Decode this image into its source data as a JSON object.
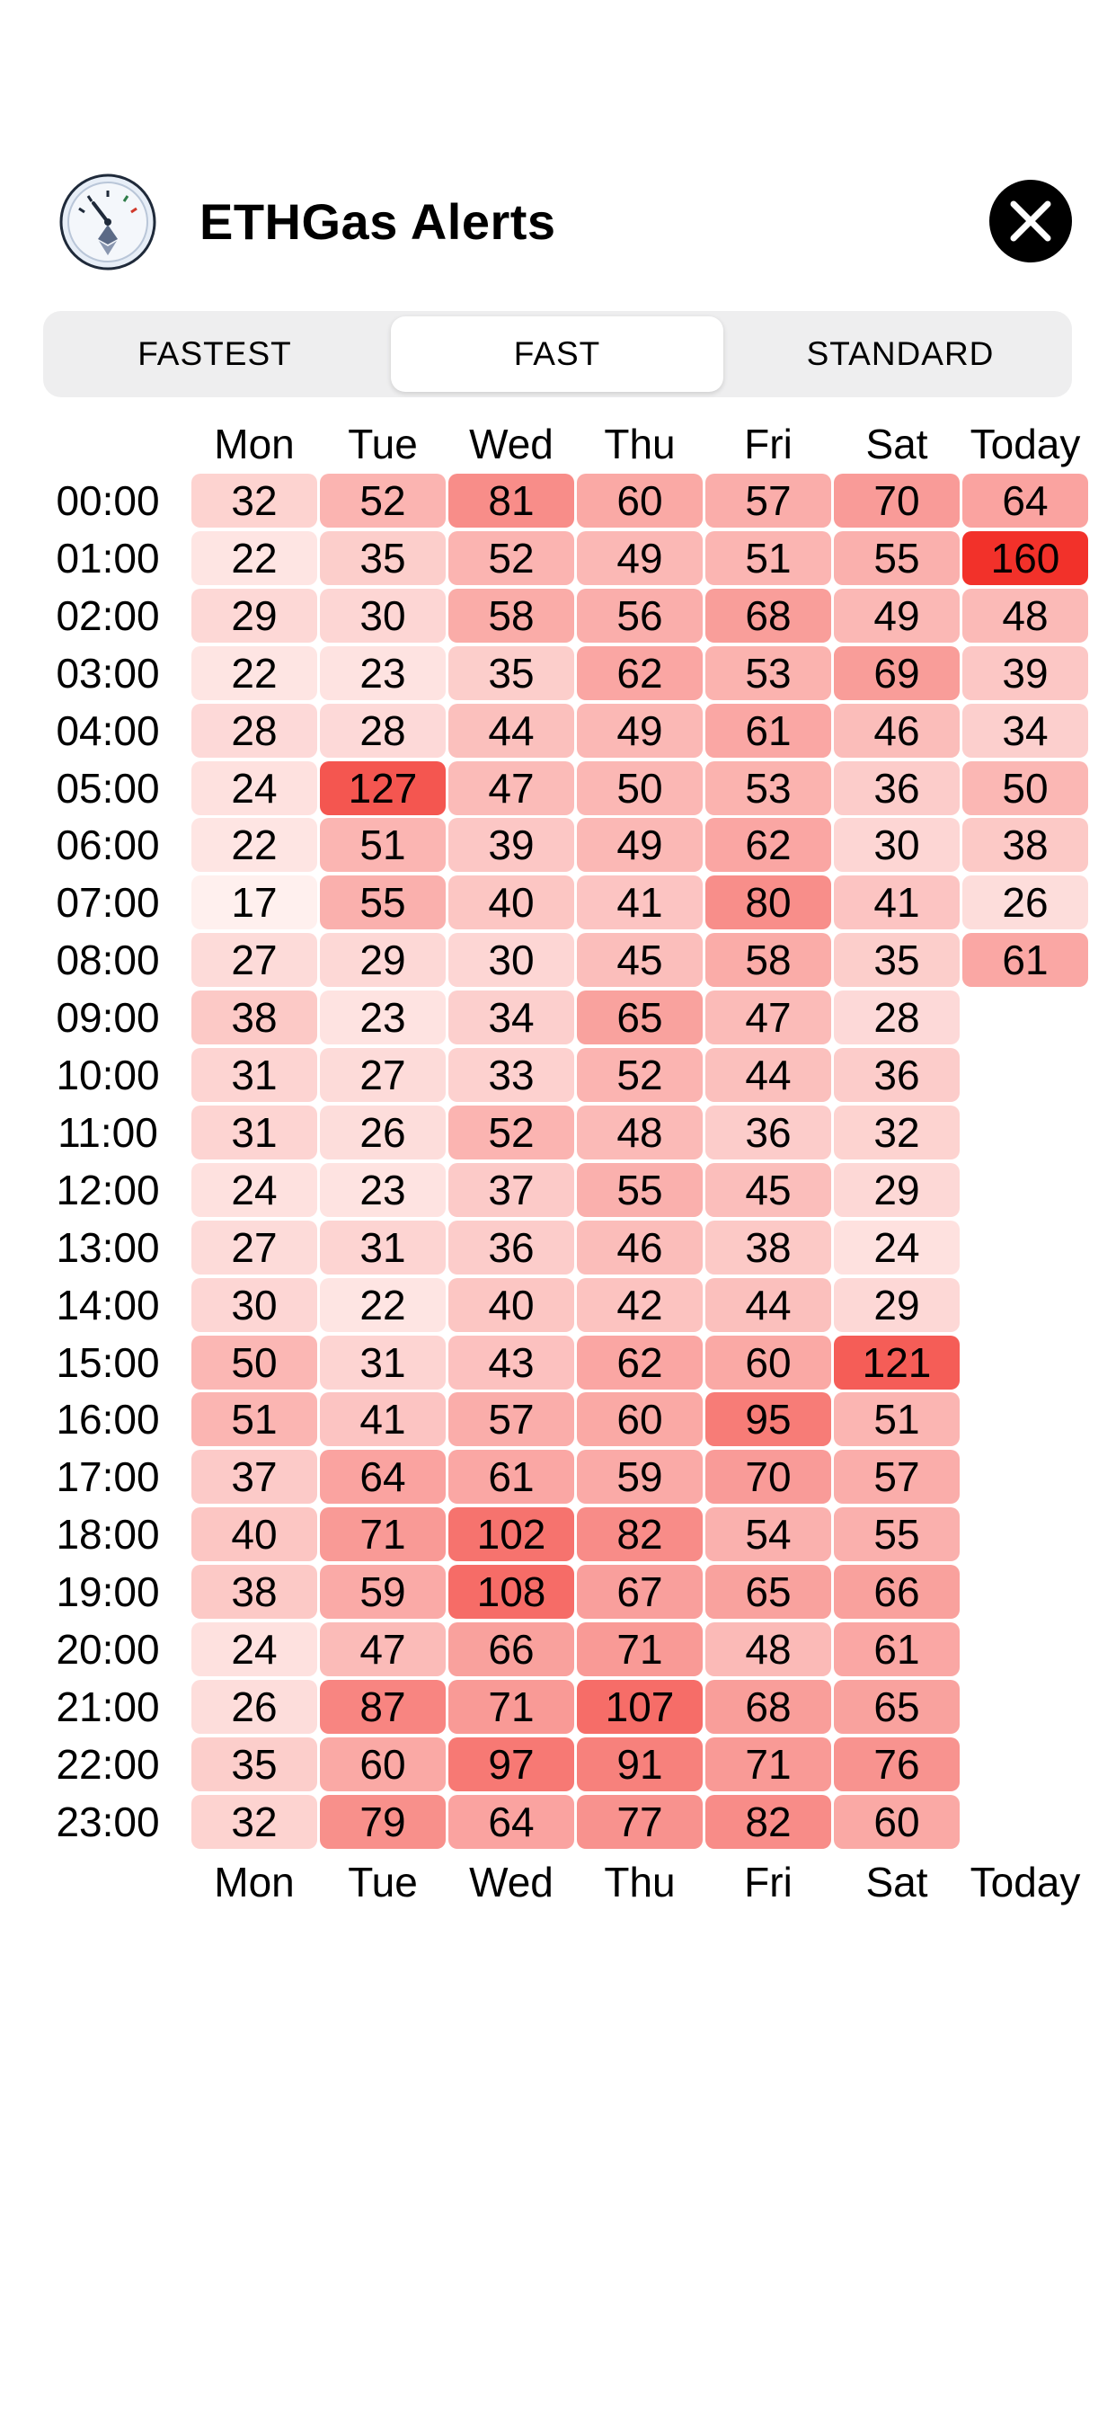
{
  "header": {
    "title": "ETHGas Alerts",
    "app_icon": "gas-gauge-icon",
    "close_icon": "close-icon"
  },
  "tabs": [
    {
      "label": "FASTEST",
      "active": false
    },
    {
      "label": "FAST",
      "active": true
    },
    {
      "label": "STANDARD",
      "active": false
    }
  ],
  "colors": {
    "heat_low": "#fff6f5",
    "heat_high": "#f2312a",
    "segment_bg": "#eeeeef",
    "close_bg": "#000000"
  },
  "heatmap": {
    "days": [
      "Mon",
      "Tue",
      "Wed",
      "Thu",
      "Fri",
      "Sat",
      "Today"
    ],
    "hours": [
      "00:00",
      "01:00",
      "02:00",
      "03:00",
      "04:00",
      "05:00",
      "06:00",
      "07:00",
      "08:00",
      "09:00",
      "10:00",
      "11:00",
      "12:00",
      "13:00",
      "14:00",
      "15:00",
      "16:00",
      "17:00",
      "18:00",
      "19:00",
      "20:00",
      "21:00",
      "22:00",
      "23:00"
    ],
    "values": [
      [
        32,
        52,
        81,
        60,
        57,
        70,
        64
      ],
      [
        22,
        35,
        52,
        49,
        51,
        55,
        160
      ],
      [
        29,
        30,
        58,
        56,
        68,
        49,
        48
      ],
      [
        22,
        23,
        35,
        62,
        53,
        69,
        39
      ],
      [
        28,
        28,
        44,
        49,
        61,
        46,
        34
      ],
      [
        24,
        127,
        47,
        50,
        53,
        36,
        50
      ],
      [
        22,
        51,
        39,
        49,
        62,
        30,
        38
      ],
      [
        17,
        55,
        40,
        41,
        80,
        41,
        26
      ],
      [
        27,
        29,
        30,
        45,
        58,
        35,
        61
      ],
      [
        38,
        23,
        34,
        65,
        47,
        28,
        null
      ],
      [
        31,
        27,
        33,
        52,
        44,
        36,
        null
      ],
      [
        31,
        26,
        52,
        48,
        36,
        32,
        null
      ],
      [
        24,
        23,
        37,
        55,
        45,
        29,
        null
      ],
      [
        27,
        31,
        36,
        46,
        38,
        24,
        null
      ],
      [
        30,
        22,
        40,
        42,
        44,
        29,
        null
      ],
      [
        50,
        31,
        43,
        62,
        60,
        121,
        null
      ],
      [
        51,
        41,
        57,
        60,
        95,
        51,
        null
      ],
      [
        37,
        64,
        61,
        59,
        70,
        57,
        null
      ],
      [
        40,
        71,
        102,
        82,
        54,
        55,
        null
      ],
      [
        38,
        59,
        108,
        67,
        65,
        66,
        null
      ],
      [
        24,
        47,
        66,
        71,
        48,
        61,
        null
      ],
      [
        26,
        87,
        71,
        107,
        68,
        65,
        null
      ],
      [
        35,
        60,
        97,
        91,
        71,
        76,
        null
      ],
      [
        32,
        79,
        64,
        77,
        82,
        60,
        null
      ]
    ]
  }
}
